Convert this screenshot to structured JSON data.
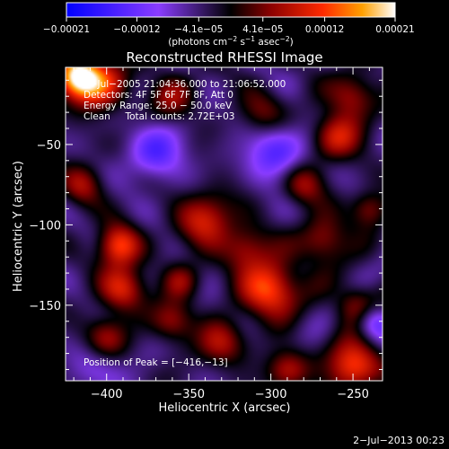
{
  "chart_data": {
    "type": "heatmap",
    "title": "Reconstructed RHESSI Image",
    "xlabel": "Heliocentric X (arcsec)",
    "ylabel": "Heliocentric Y (arcsec)",
    "xlim": [
      -425,
      -232
    ],
    "ylim": [
      -197,
      -2
    ],
    "x_ticks": [
      -400,
      -350,
      -300,
      -250
    ],
    "x_tick_labels": [
      "−400",
      "−350",
      "−300",
      "−250"
    ],
    "y_ticks": [
      -50,
      -100,
      -150
    ],
    "y_tick_labels": [
      "−50",
      "−100",
      "−150"
    ],
    "colorbar": {
      "range": [
        -0.00021,
        0.00021
      ],
      "ticks": [
        -0.00021,
        -0.00012,
        -4.1e-05,
        4.1e-05,
        0.00012,
        0.00021
      ],
      "tick_labels": [
        "−0.00021",
        "−0.00012",
        "−4.1e−05",
        "4.1e−05",
        "0.00012",
        "0.00021"
      ],
      "unit_main": "(photons cm",
      "unit_sup1": "−2",
      "unit_mid": " s",
      "unit_sup2": "−1",
      "unit_mid2": " asec",
      "unit_sup3": "−2",
      "unit_close": ")"
    },
    "annotations": [
      "2−Jul−2005 21:04:36.000 to 21:06:52.000",
      "Detectors: 4F 5F 6F 7F 8F, Att 0",
      "Energy Range: 25.0 − 50.0 keV",
      "Clean     Total counts: 2.72E+03"
    ],
    "peak_label": "Position of Peak = [−416,−13]",
    "peak": [
      -416,
      -13
    ],
    "sources": [
      {
        "x": -418,
        "y": -8,
        "value": 1.0,
        "sigma": 9
      },
      {
        "x": -405,
        "y": -12,
        "value": 0.7,
        "sigma": 12
      },
      {
        "x": -300,
        "y": -140,
        "value": 0.85,
        "sigma": 12
      },
      {
        "x": -250,
        "y": -188,
        "value": 0.8,
        "sigma": 11
      },
      {
        "x": -393,
        "y": -113,
        "value": 0.78,
        "sigma": 9
      },
      {
        "x": -390,
        "y": -140,
        "value": 0.62,
        "sigma": 10
      },
      {
        "x": -340,
        "y": -97,
        "value": 0.6,
        "sigma": 12
      },
      {
        "x": -260,
        "y": -45,
        "value": 0.58,
        "sigma": 10
      },
      {
        "x": -250,
        "y": -20,
        "value": 0.5,
        "sigma": 10
      },
      {
        "x": -268,
        "y": -110,
        "value": 0.55,
        "sigma": 10
      },
      {
        "x": -248,
        "y": -150,
        "value": 0.5,
        "sigma": 9
      },
      {
        "x": -330,
        "y": -173,
        "value": 0.5,
        "sigma": 10
      },
      {
        "x": -315,
        "y": -115,
        "value": 0.5,
        "sigma": 10
      },
      {
        "x": -360,
        "y": -160,
        "value": 0.45,
        "sigma": 9
      },
      {
        "x": -280,
        "y": -75,
        "value": 0.45,
        "sigma": 9
      },
      {
        "x": -415,
        "y": -75,
        "value": 0.45,
        "sigma": 9
      },
      {
        "x": -400,
        "y": -170,
        "value": 0.45,
        "sigma": 9
      },
      {
        "x": -290,
        "y": -190,
        "value": 0.5,
        "sigma": 9
      },
      {
        "x": -360,
        "y": -20,
        "value": 0.4,
        "sigma": 10
      },
      {
        "x": -305,
        "y": -30,
        "value": 0.35,
        "sigma": 10
      },
      {
        "x": -355,
        "y": -135,
        "value": 0.4,
        "sigma": 8
      },
      {
        "x": -240,
        "y": -90,
        "value": 0.45,
        "sigma": 8
      },
      {
        "x": -370,
        "y": -55,
        "value": -0.45,
        "sigma": 12
      },
      {
        "x": -297,
        "y": -55,
        "value": -0.5,
        "sigma": 12
      },
      {
        "x": -238,
        "y": -160,
        "value": -0.45,
        "sigma": 8
      },
      {
        "x": -405,
        "y": -190,
        "value": -0.2,
        "sigma": 12
      }
    ]
  },
  "timestamp": "2−Jul−2013 00:23"
}
